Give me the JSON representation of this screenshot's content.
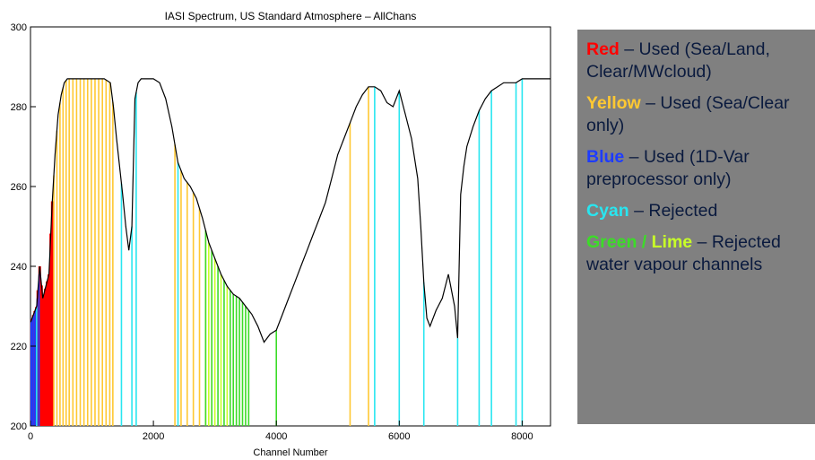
{
  "colors": {
    "spectrum": "#000000",
    "red": "#ff0000",
    "yellow": "#ffc832",
    "blue": "#1e3cff",
    "cyan": "#28e6f0",
    "green": "#3cdc28",
    "lime": "#c8ff28",
    "legend_bg": "#808080",
    "legend_text": "#0a1a3e"
  },
  "chart_data": {
    "type": "line",
    "title": "IASI Spectrum, US Standard Atmosphere – AllChans",
    "xlabel": "Channel Number",
    "ylabel": "",
    "xlim": [
      0,
      8461
    ],
    "ylim": [
      200,
      300
    ],
    "xticks": [
      "0",
      "2000",
      "4000",
      "6000",
      "8000"
    ],
    "yticks": [
      "200",
      "220",
      "240",
      "260",
      "280",
      "300"
    ],
    "grid": false,
    "legend_position": "right",
    "series": [
      {
        "name": "",
        "x": [
          1,
          100,
          150,
          200,
          250,
          300,
          350,
          400,
          450,
          500,
          550,
          600,
          700,
          800,
          900,
          1000,
          1100,
          1200,
          1300,
          1350,
          1400,
          1450,
          1500,
          1550,
          1600,
          1650,
          1700,
          1750,
          1800,
          1900,
          2000,
          2100,
          2200,
          2300,
          2400,
          2500,
          2600,
          2700,
          2800,
          2900,
          3000,
          3100,
          3200,
          3300,
          3400,
          3500,
          3600,
          3700,
          3800,
          3900,
          4000,
          4100,
          4200,
          4300,
          4400,
          4500,
          4600,
          4700,
          4800,
          4900,
          5000,
          5100,
          5200,
          5300,
          5400,
          5500,
          5600,
          5700,
          5800,
          5900,
          6000,
          6100,
          6200,
          6300,
          6350,
          6400,
          6450,
          6500,
          6600,
          6700,
          6800,
          6900,
          6950,
          7000,
          7050,
          7100,
          7200,
          7300,
          7400,
          7500,
          7600,
          7700,
          7800,
          7900,
          8000,
          8100,
          8200,
          8300,
          8461
        ],
        "y": [
          226,
          230,
          240,
          232,
          235,
          238,
          255,
          268,
          278,
          283,
          286,
          287,
          287,
          287,
          287,
          287,
          287,
          287,
          286,
          280,
          272,
          265,
          258,
          250,
          244,
          250,
          282,
          286,
          287,
          287,
          287,
          286,
          282,
          275,
          266,
          262,
          260,
          257,
          252,
          246,
          242,
          238,
          235,
          233,
          232,
          230,
          228,
          225,
          221,
          223,
          224,
          228,
          232,
          236,
          240,
          244,
          248,
          252,
          256,
          262,
          268,
          272,
          276,
          280,
          283,
          285,
          285,
          284,
          281,
          280,
          284,
          278,
          272,
          262,
          250,
          236,
          227,
          225,
          229,
          232,
          238,
          230,
          222,
          258,
          265,
          270,
          275,
          279,
          282,
          284,
          285,
          286,
          286,
          286,
          287,
          287,
          287,
          287,
          287
        ]
      }
    ],
    "legend_entries": [
      {
        "key": "Red",
        "desc": " – Used (Sea/Land, Clear/MWcloud)",
        "color": "#ff0000"
      },
      {
        "key": "Yellow",
        "desc": " – Used (Sea/Clear only)",
        "color": "#ffc832"
      },
      {
        "key": "Blue",
        "desc": " – Used (1D-Var preprocessor only)",
        "color": "#1e3cff"
      },
      {
        "key": "Cyan",
        "desc": " – Rejected",
        "color": "#28e6f0"
      },
      {
        "key": "Green / Lime",
        "desc": " – Rejected water vapour channels",
        "color": "#3cdc28"
      }
    ],
    "channel_groups": [
      {
        "color": "red",
        "channels": [
          20,
          45,
          70,
          95,
          120,
          150,
          180,
          210,
          240,
          270,
          300,
          330,
          355
        ]
      },
      {
        "color": "blue",
        "channels": [
          10,
          30,
          55,
          80,
          110,
          140
        ]
      },
      {
        "color": "yellow",
        "channels": [
          380,
          430,
          480,
          530,
          580,
          630,
          690,
          750,
          810,
          870,
          930,
          990,
          1050,
          1110,
          1170,
          1230,
          1290,
          1340,
          2350,
          2450,
          2550,
          2650,
          2750,
          2850,
          2950,
          5200,
          5500
        ]
      },
      {
        "color": "cyan",
        "channels": [
          100,
          1480,
          1650,
          1720,
          2400,
          5600,
          6000,
          6400,
          6950,
          7300,
          7500,
          7900,
          8000
        ]
      },
      {
        "color": "green",
        "channels": [
          2850,
          2950,
          3050,
          3150,
          3250,
          3300,
          3350,
          3400,
          3450,
          3500,
          3550,
          4000
        ]
      },
      {
        "color": "lime",
        "channels": [
          2900,
          3000,
          3100,
          3200
        ]
      }
    ]
  }
}
